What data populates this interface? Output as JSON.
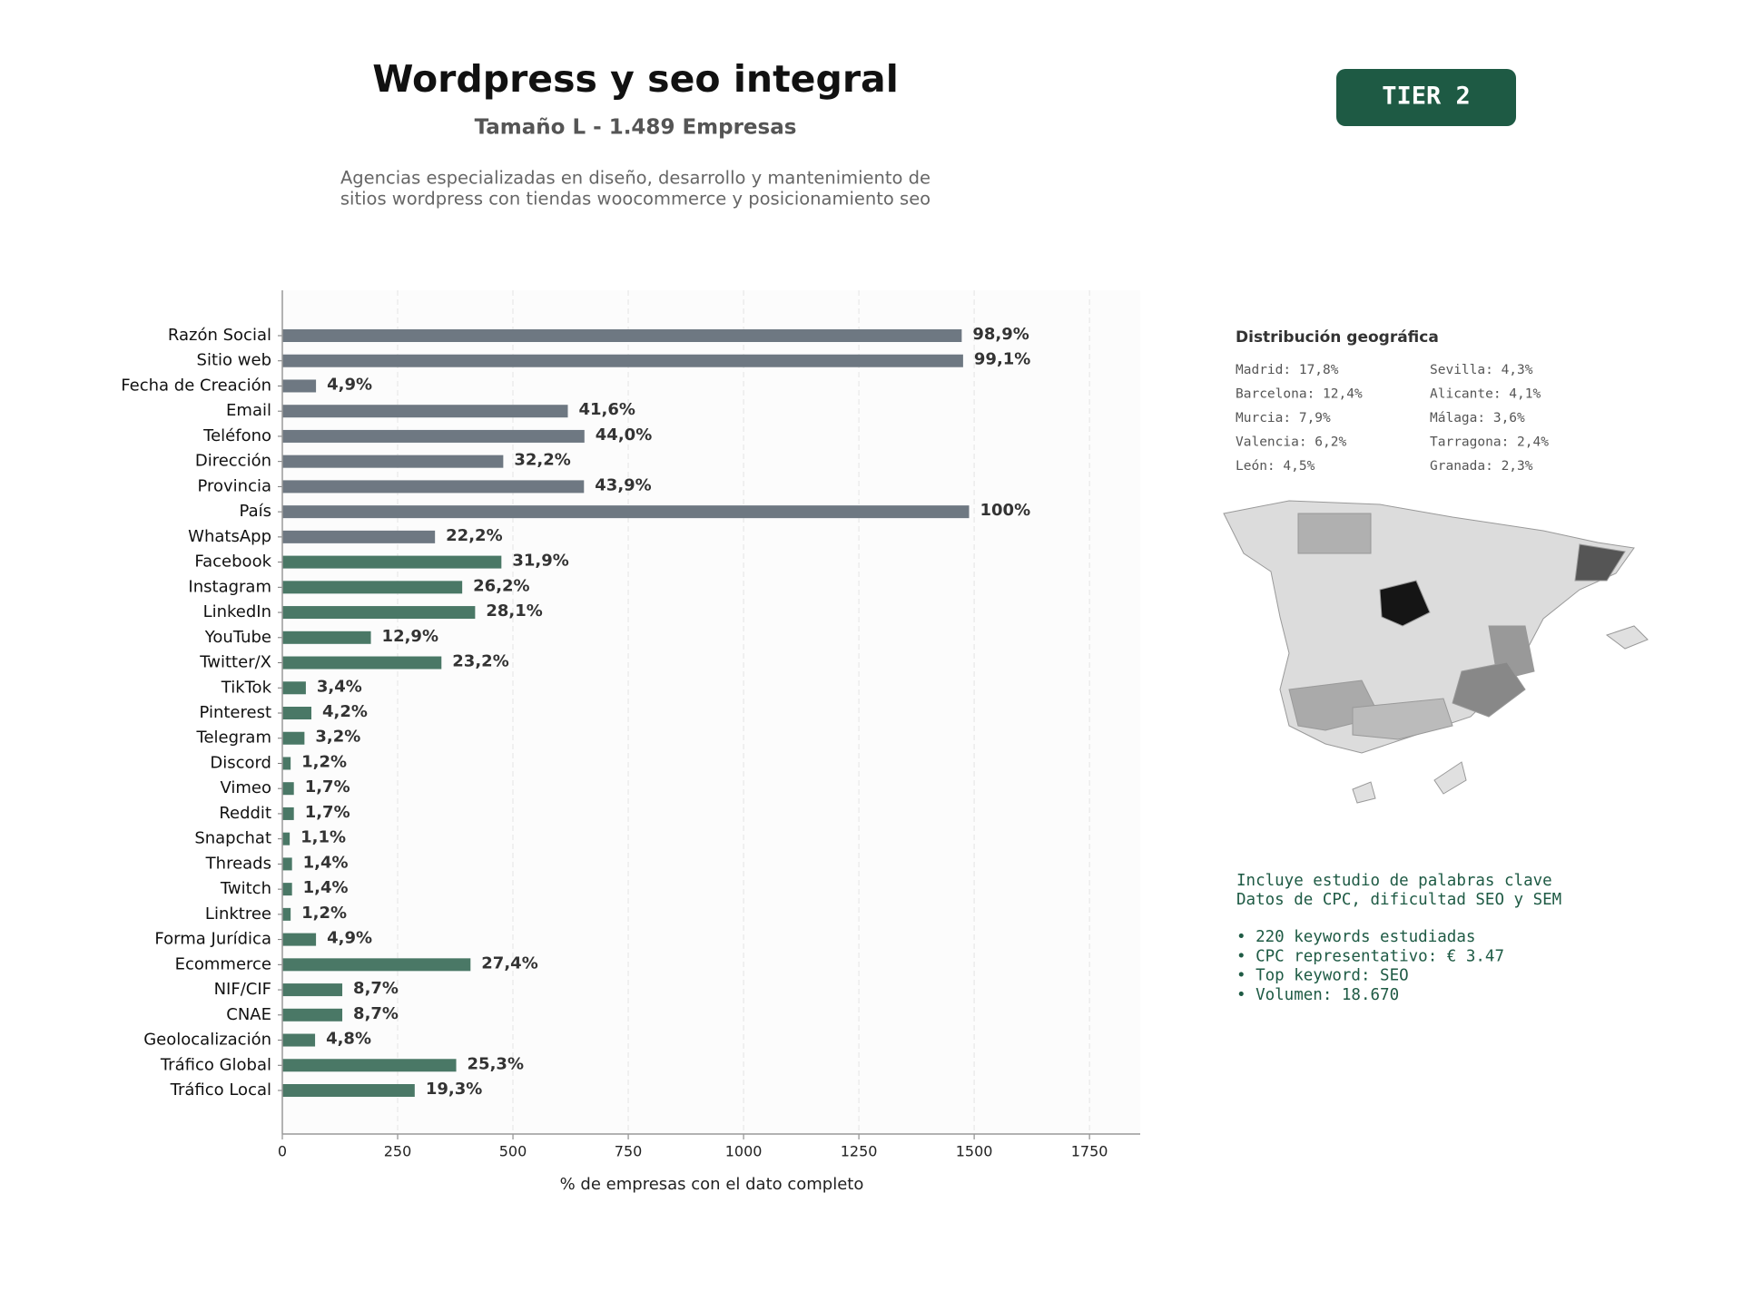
{
  "chart_data": {
    "type": "bar",
    "orientation": "horizontal",
    "title": "Wordpress y seo integral",
    "subtitle": "Tamaño L - 1.489 Empresas",
    "description": [
      "Agencias especializadas en diseño, desarrollo y mantenimiento de",
      "sitios wordpress con tiendas woocommerce y posicionamiento seo"
    ],
    "badge": "TIER 2",
    "xlabel": "% de empresas con el dato completo",
    "categories": [
      "Razón Social",
      "Sitio web",
      "Fecha de Creación",
      "Email",
      "Teléfono",
      "Dirección",
      "Provincia",
      "País",
      "WhatsApp",
      "Facebook",
      "Instagram",
      "LinkedIn",
      "YouTube",
      "Twitter/X",
      "TikTok",
      "Pinterest",
      "Telegram",
      "Discord",
      "Vimeo",
      "Reddit",
      "Snapchat",
      "Threads",
      "Twitch",
      "Linktree",
      "Forma Jurídica",
      "Ecommerce",
      "NIF/CIF",
      "CNAE",
      "Geolocalización",
      "Tráfico Global",
      "Tráfico Local"
    ],
    "values": [
      1473,
      1476,
      73,
      619,
      655,
      479,
      654,
      1489,
      331,
      475,
      390,
      418,
      192,
      345,
      51,
      63,
      48,
      18,
      25,
      25,
      16,
      21,
      21,
      18,
      73,
      408,
      130,
      130,
      71,
      377,
      287
    ],
    "value_labels": [
      "98,9%",
      "99,1%",
      "4,9%",
      "41,6%",
      "44,0%",
      "32,2%",
      "43,9%",
      "100%",
      "22,2%",
      "31,9%",
      "26,2%",
      "28,1%",
      "12,9%",
      "23,2%",
      "3,4%",
      "4,2%",
      "3,2%",
      "1,2%",
      "1,7%",
      "1,7%",
      "1,1%",
      "1,4%",
      "1,4%",
      "1,2%",
      "4,9%",
      "27,4%",
      "8,7%",
      "8,7%",
      "4,8%",
      "25,3%",
      "19,3%"
    ],
    "colors": [
      "#6e7882",
      "#6e7882",
      "#6e7882",
      "#6e7882",
      "#6e7882",
      "#6e7882",
      "#6e7882",
      "#6e7882",
      "#6e7882",
      "#4a7866",
      "#4a7866",
      "#4a7866",
      "#4a7866",
      "#4a7866",
      "#4a7866",
      "#4a7866",
      "#4a7866",
      "#4a7866",
      "#4a7866",
      "#4a7866",
      "#4a7866",
      "#4a7866",
      "#4a7866",
      "#4a7866",
      "#4a7866",
      "#4a7866",
      "#4a7866",
      "#4a7866",
      "#4a7866",
      "#4a7866",
      "#4a7866"
    ],
    "xlim": [
      0,
      1860
    ],
    "xticks": [
      0,
      250,
      500,
      750,
      1000,
      1250,
      1500,
      1750
    ],
    "grid": true
  },
  "sidebar": {
    "geo_title": "Distribución geográfica",
    "geo_items": [
      "Madrid: 17,8%",
      "Barcelona: 12,4%",
      "Murcia: 7,9%",
      "Valencia: 6,2%",
      "León: 4,5%",
      "Sevilla: 4,3%",
      "Alicante: 4,1%",
      "Málaga: 3,6%",
      "Tarragona: 2,4%",
      "Granada: 2,3%"
    ],
    "notes": [
      "Incluye estudio de palabras clave",
      "Datos de CPC, dificultad SEO y SEM"
    ],
    "bullets": [
      "• 220 keywords estudiadas",
      "• CPC representativo: € 3.47",
      "• Top keyword: SEO",
      "• Volumen: 18.670"
    ]
  }
}
